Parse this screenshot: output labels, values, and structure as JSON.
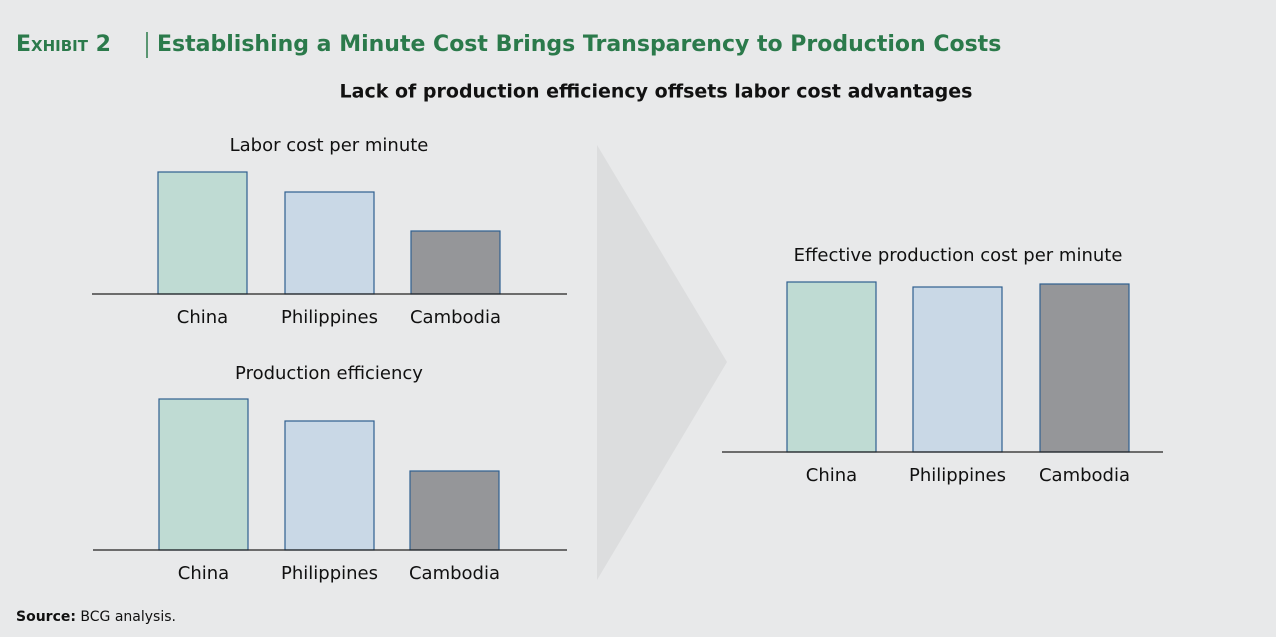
{
  "header": {
    "exhibit": "Exhibit 2",
    "title": "Establishing a Minute Cost Brings Transparency to Production Costs",
    "subtitle": "Lack of production efficiency offsets labor cost advantages"
  },
  "chart_data": [
    {
      "type": "bar",
      "title": "Labor cost per minute",
      "categories": [
        "China",
        "Philippines",
        "Cambodia"
      ],
      "values": [
        122,
        102,
        63
      ],
      "colors": [
        "#bfdbd3",
        "#c9d8e6",
        "#959699"
      ]
    },
    {
      "type": "bar",
      "title": "Production efficiency",
      "categories": [
        "China",
        "Philippines",
        "Cambodia"
      ],
      "values": [
        151,
        129,
        79
      ],
      "colors": [
        "#bfdbd3",
        "#c9d8e6",
        "#959699"
      ]
    },
    {
      "type": "bar",
      "title": "Effective production cost per minute",
      "categories": [
        "China",
        "Philippines",
        "Cambodia"
      ],
      "values": [
        170,
        165,
        168
      ],
      "colors": [
        "#bfdbd3",
        "#c9d8e6",
        "#959699"
      ]
    }
  ],
  "source": {
    "label": "Source:",
    "text": "BCG analysis."
  }
}
